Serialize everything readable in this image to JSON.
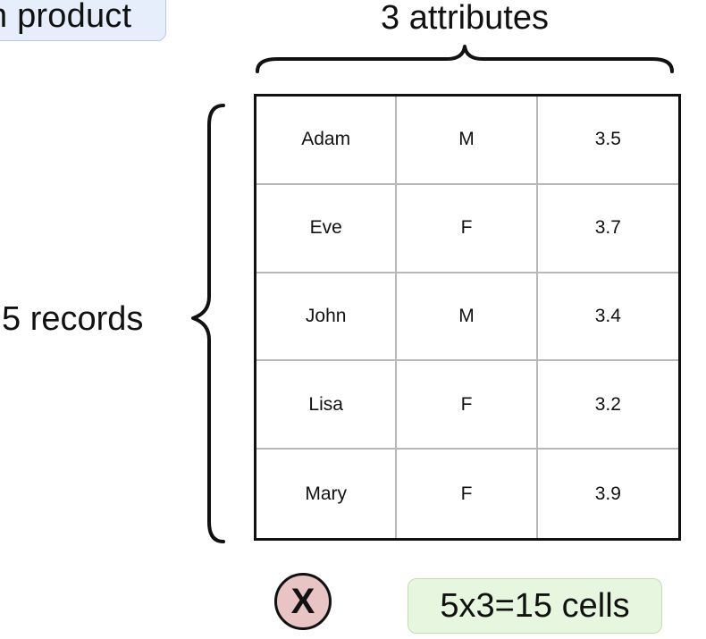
{
  "top_tag": {
    "text": "n product"
  },
  "attributes_label": "3 attributes",
  "records_label": "5 records",
  "table": {
    "rows": [
      [
        "Adam",
        "M",
        "3.5"
      ],
      [
        "Eve",
        "F",
        "3.7"
      ],
      [
        "John",
        "M",
        "3.4"
      ],
      [
        "Lisa",
        "F",
        "3.2"
      ],
      [
        "Mary",
        "F",
        "3.9"
      ]
    ]
  },
  "operator": {
    "symbol": "X",
    "color": "#e8c4c4"
  },
  "result_tag": {
    "text": "5x3=15 cells",
    "color": "#e7f6de"
  }
}
